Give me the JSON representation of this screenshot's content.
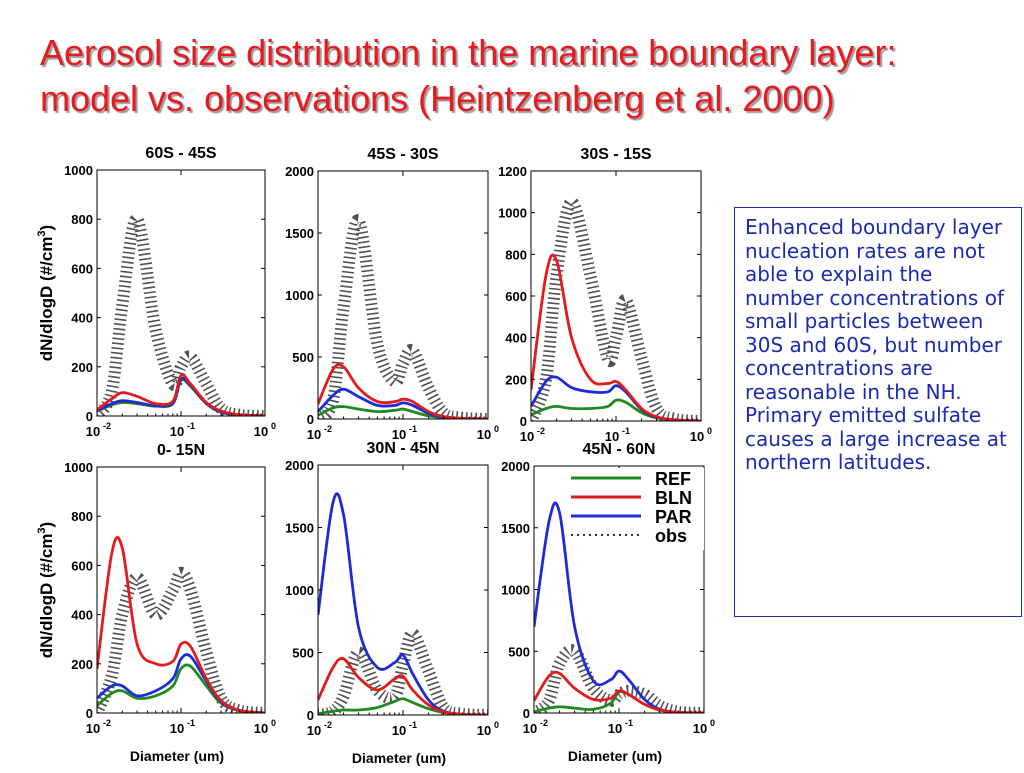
{
  "title": {
    "line1": "Aerosol size distribution in the marine boundary layer:",
    "line2": "model vs. observations (Heintzenberg et al. 2000)"
  },
  "note": "Enhanced boundary layer nucleation rates are not able to explain the number concentrations of small particles between 30S and 60S, but number concentrations are reasonable in the NH. Primary emitted sulfate causes a large increase at northern latitudes.",
  "colors": {
    "title": "#e8191f",
    "note": "#1b2bb0",
    "REF": "#1f8a1f",
    "BLN": "#e21b1b",
    "PAR": "#1f2bd6",
    "obs": "#333333"
  },
  "shared_axes": {
    "ylabel": "dN/dlogD (#/cm",
    "ylabel_sup": "3",
    "ylabel_close": ")",
    "xlabel": "Diameter (um)",
    "xtick_base": "10",
    "xtick_exps": [
      "-2",
      "-1",
      "0"
    ]
  },
  "legend": {
    "placement": "top-right of 45N - 60N panel",
    "entries": [
      "REF",
      "BLN",
      "PAR",
      "obs"
    ]
  },
  "chart_data": [
    {
      "type": "line",
      "title": "60S - 45S",
      "xscale": "log",
      "xlim": [
        0.01,
        1
      ],
      "ylim": [
        0,
        1000
      ],
      "yticks": [
        "0",
        "200",
        "400",
        "600",
        "800",
        "1000"
      ],
      "x": [
        0.01,
        0.015,
        0.02,
        0.03,
        0.05,
        0.08,
        0.1,
        0.13,
        0.2,
        0.3,
        0.5,
        1
      ],
      "series": [
        {
          "name": "REF",
          "values": [
            20,
            45,
            55,
            50,
            40,
            50,
            145,
            120,
            50,
            15,
            5,
            0
          ]
        },
        {
          "name": "BLN",
          "values": [
            25,
            70,
            95,
            80,
            50,
            60,
            165,
            130,
            55,
            20,
            5,
            0
          ]
        },
        {
          "name": "PAR",
          "values": [
            22,
            50,
            62,
            55,
            42,
            52,
            150,
            125,
            52,
            16,
            5,
            0
          ]
        },
        {
          "name": "obs",
          "values": [
            0,
            100,
            450,
            800,
            350,
            130,
            200,
            240,
            130,
            30,
            5,
            0
          ]
        }
      ]
    },
    {
      "type": "line",
      "title": "45S - 30S",
      "xscale": "log",
      "xlim": [
        0.01,
        1
      ],
      "ylim": [
        0,
        2000
      ],
      "yticks": [
        "0",
        "500",
        "1000",
        "1500",
        "2000"
      ],
      "x": [
        0.01,
        0.015,
        0.02,
        0.03,
        0.05,
        0.08,
        0.1,
        0.13,
        0.2,
        0.3,
        0.5,
        1
      ],
      "series": [
        {
          "name": "REF",
          "values": [
            30,
            90,
            100,
            80,
            60,
            70,
            80,
            60,
            25,
            10,
            5,
            0
          ]
        },
        {
          "name": "BLN",
          "values": [
            120,
            400,
            420,
            250,
            140,
            140,
            160,
            140,
            60,
            20,
            5,
            0
          ]
        },
        {
          "name": "PAR",
          "values": [
            60,
            190,
            240,
            180,
            110,
            110,
            130,
            110,
            45,
            15,
            5,
            0
          ]
        },
        {
          "name": "obs",
          "values": [
            0,
            150,
            900,
            1600,
            600,
            300,
            450,
            550,
            250,
            50,
            10,
            0
          ]
        }
      ]
    },
    {
      "type": "line",
      "title": "30S - 15S",
      "xscale": "log",
      "xlim": [
        0.01,
        1
      ],
      "ylim": [
        0,
        1200
      ],
      "yticks": [
        "0",
        "200",
        "400",
        "600",
        "800",
        "1000",
        "1200"
      ],
      "x": [
        0.01,
        0.015,
        0.02,
        0.03,
        0.05,
        0.08,
        0.1,
        0.13,
        0.2,
        0.3,
        0.5,
        1
      ],
      "series": [
        {
          "name": "REF",
          "values": [
            30,
            60,
            70,
            60,
            60,
            70,
            100,
            90,
            40,
            15,
            5,
            0
          ]
        },
        {
          "name": "BLN",
          "values": [
            150,
            700,
            770,
            400,
            200,
            180,
            190,
            150,
            60,
            20,
            5,
            0
          ]
        },
        {
          "name": "PAR",
          "values": [
            70,
            190,
            210,
            160,
            140,
            140,
            170,
            140,
            55,
            18,
            5,
            0
          ]
        },
        {
          "name": "obs",
          "values": [
            0,
            200,
            700,
            1050,
            700,
            300,
            400,
            580,
            300,
            60,
            10,
            0
          ]
        }
      ]
    },
    {
      "type": "line",
      "title": "0- 15N",
      "xscale": "log",
      "xlim": [
        0.01,
        1
      ],
      "ylim": [
        0,
        1000
      ],
      "yticks": [
        "0",
        "200",
        "400",
        "600",
        "800",
        "1000"
      ],
      "x": [
        0.01,
        0.015,
        0.02,
        0.03,
        0.05,
        0.08,
        0.1,
        0.13,
        0.2,
        0.3,
        0.5,
        1
      ],
      "series": [
        {
          "name": "REF",
          "values": [
            30,
            80,
            90,
            60,
            70,
            110,
            180,
            190,
            110,
            40,
            10,
            0
          ]
        },
        {
          "name": "BLN",
          "values": [
            180,
            650,
            670,
            280,
            200,
            210,
            280,
            270,
            140,
            50,
            10,
            0
          ]
        },
        {
          "name": "PAR",
          "values": [
            60,
            110,
            110,
            70,
            90,
            140,
            220,
            230,
            130,
            45,
            10,
            0
          ]
        },
        {
          "name": "obs",
          "values": [
            0,
            150,
            400,
            550,
            400,
            500,
            570,
            500,
            250,
            60,
            10,
            0
          ]
        }
      ]
    },
    {
      "type": "line",
      "title": "30N - 45N",
      "xscale": "log",
      "xlim": [
        0.01,
        1
      ],
      "ylim": [
        0,
        2000
      ],
      "yticks": [
        "0",
        "500",
        "1000",
        "1500",
        "2000"
      ],
      "x": [
        0.01,
        0.015,
        0.02,
        0.03,
        0.05,
        0.08,
        0.1,
        0.13,
        0.2,
        0.3,
        0.5,
        1
      ],
      "series": [
        {
          "name": "REF",
          "values": [
            10,
            30,
            40,
            40,
            60,
            110,
            130,
            100,
            50,
            20,
            5,
            0
          ]
        },
        {
          "name": "BLN",
          "values": [
            120,
            380,
            450,
            300,
            200,
            290,
            310,
            200,
            80,
            25,
            5,
            0
          ]
        },
        {
          "name": "PAR",
          "values": [
            800,
            1700,
            1600,
            700,
            380,
            420,
            480,
            330,
            120,
            30,
            5,
            0
          ]
        },
        {
          "name": "obs",
          "values": [
            0,
            30,
            150,
            500,
            200,
            150,
            400,
            650,
            350,
            60,
            10,
            0
          ]
        }
      ]
    },
    {
      "type": "line",
      "title": "45N - 60N",
      "xscale": "log",
      "xlim": [
        0.01,
        1
      ],
      "ylim": [
        0,
        2000
      ],
      "yticks": [
        "0",
        "500",
        "1000",
        "1500",
        "2000"
      ],
      "x": [
        0.01,
        0.015,
        0.02,
        0.03,
        0.05,
        0.08,
        0.1,
        0.13,
        0.2,
        0.3,
        0.5,
        1
      ],
      "series": [
        {
          "name": "REF",
          "values": [
            10,
            40,
            50,
            40,
            30,
            80,
            170,
            150,
            70,
            25,
            5,
            0
          ]
        },
        {
          "name": "BLN",
          "values": [
            100,
            300,
            320,
            200,
            110,
            120,
            180,
            150,
            70,
            25,
            5,
            0
          ]
        },
        {
          "name": "PAR",
          "values": [
            700,
            1550,
            1620,
            700,
            260,
            270,
            340,
            270,
            110,
            30,
            5,
            0
          ]
        },
        {
          "name": "obs",
          "values": [
            0,
            100,
            400,
            500,
            200,
            100,
            150,
            180,
            150,
            60,
            10,
            0
          ]
        }
      ]
    }
  ]
}
